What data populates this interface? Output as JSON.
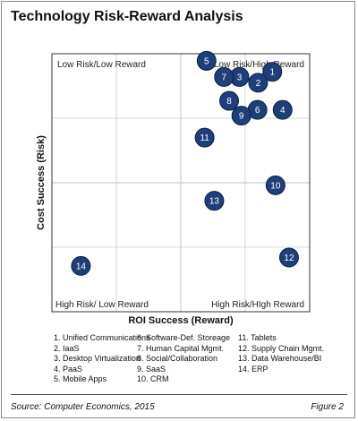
{
  "title": "Technology Risk-Reward Analysis",
  "chart_data": {
    "type": "scatter",
    "xlabel": "ROI Success (Reward)",
    "ylabel": "Cost Success (Risk)",
    "xlim": [
      0,
      4
    ],
    "ylim": [
      0,
      4
    ],
    "grid": true,
    "quadrants": {
      "top_left": "Low Risk/Low Reward",
      "top_right": "Low Risk/High Reward",
      "bottom_left": "High Risk/ Low Reward",
      "bottom_right": "High Risk/HIgh Reward"
    },
    "points": [
      {
        "id": "1",
        "x": 3.42,
        "y": 3.72
      },
      {
        "id": "2",
        "x": 3.2,
        "y": 3.55
      },
      {
        "id": "3",
        "x": 2.91,
        "y": 3.64
      },
      {
        "id": "4",
        "x": 3.58,
        "y": 3.13
      },
      {
        "id": "5",
        "x": 2.4,
        "y": 3.89
      },
      {
        "id": "6",
        "x": 3.19,
        "y": 3.13
      },
      {
        "id": "7",
        "x": 2.67,
        "y": 3.64
      },
      {
        "id": "8",
        "x": 2.75,
        "y": 3.27
      },
      {
        "id": "9",
        "x": 2.94,
        "y": 3.04
      },
      {
        "id": "10",
        "x": 3.47,
        "y": 1.96
      },
      {
        "id": "11",
        "x": 2.37,
        "y": 2.7
      },
      {
        "id": "12",
        "x": 3.68,
        "y": 0.84
      },
      {
        "id": "13",
        "x": 2.52,
        "y": 1.72
      },
      {
        "id": "14",
        "x": 0.45,
        "y": 0.71
      }
    ]
  },
  "legend": {
    "col1": [
      "1. Unified Communications",
      "2. IaaS",
      "3. Desktop Virtualization",
      "4. PaaS",
      "5. Mobile Apps"
    ],
    "col2": [
      "6. Software-Def. Storeage",
      "7. Human Capital Mgmt.",
      "8. Social/Collaboration",
      "9. SaaS",
      "10. CRM"
    ],
    "col3": [
      "11. Tablets",
      "12. Supply Chain Mgmt.",
      "13. Data Warehouse/BI",
      "14. ERP"
    ]
  },
  "footer": {
    "source": "Source: Computer Economics, 2015",
    "figure": "Figure 2"
  },
  "colors": {
    "bubble_fill": "#1f3f7a",
    "bubble_stroke": "#0b1f44",
    "grid": "#cccccc",
    "border": "#333333"
  }
}
